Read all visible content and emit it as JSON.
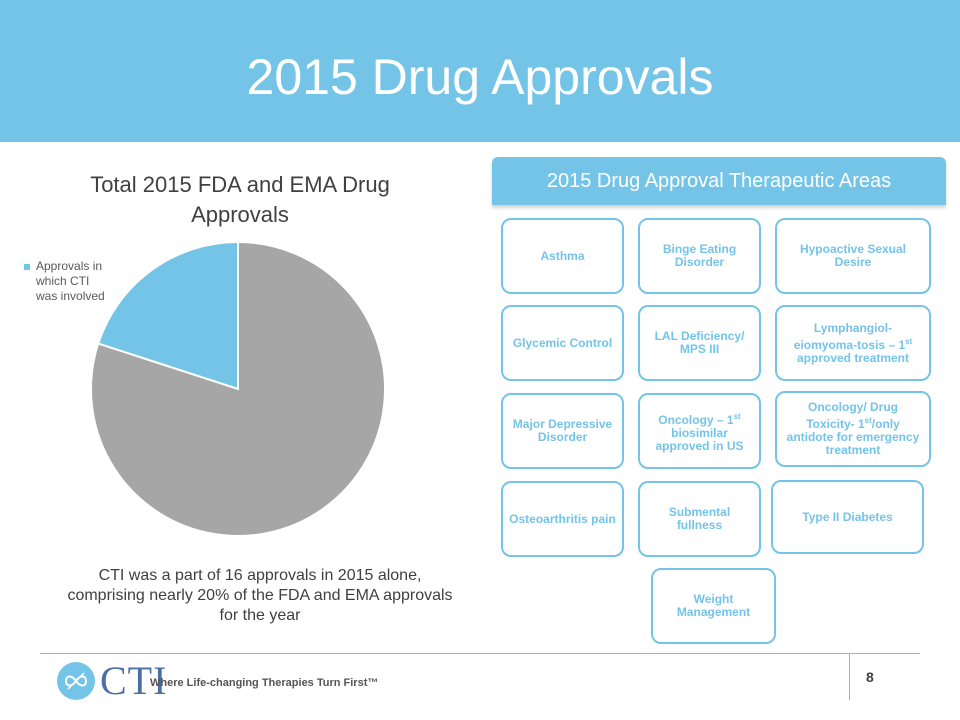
{
  "slide": {
    "title": "2015 Drug Approvals",
    "page_number": "8"
  },
  "chart_data": {
    "type": "pie",
    "title": "Total 2015 FDA and EMA Drug Approvals",
    "legend": [
      "Approvals in which CTI was involved"
    ],
    "legend_placement": "left",
    "slices": [
      {
        "label": "Approvals in which CTI was involved",
        "value": 20,
        "color": "#74c4e8"
      },
      {
        "label": "",
        "value": 80,
        "color": "#a6a6a6"
      }
    ]
  },
  "caption": "CTI was a part of 16 approvals in 2015 alone, comprising nearly 20% of the FDA and EMA approvals for the year",
  "therapeutic_areas": {
    "heading": "2015 Drug Approval Therapeutic Areas",
    "items": [
      {
        "pre": "Asthma"
      },
      {
        "pre": "Binge Eating Disorder"
      },
      {
        "pre": "Hypoactive Sexual Desire"
      },
      {
        "pre": "Glycemic Control"
      },
      {
        "pre": "LAL Deficiency/ MPS III"
      },
      {
        "pre": "Lymphangiol-eiomyoma-tosis – 1",
        "sup": "st",
        "post": " approved treatment"
      },
      {
        "pre": "Major Depressive Disorder"
      },
      {
        "pre": "Oncology – 1",
        "sup": "st",
        "post": " biosimilar approved in US"
      },
      {
        "pre": "Oncology/ Drug Toxicity- 1",
        "sup": "st",
        "post": "/only antidote for emergency treatment"
      },
      {
        "pre": "Osteoarthritis pain"
      },
      {
        "pre": "Submental fullness"
      },
      {
        "pre": "Type II Diabetes"
      },
      {
        "pre": "Weight Management"
      }
    ]
  },
  "footer": {
    "logo_text": "CTI",
    "tagline": "Where Life-changing Therapies Turn First™"
  },
  "colors": {
    "accent": "#74c4e8",
    "slice_other": "#a6a6a6"
  }
}
